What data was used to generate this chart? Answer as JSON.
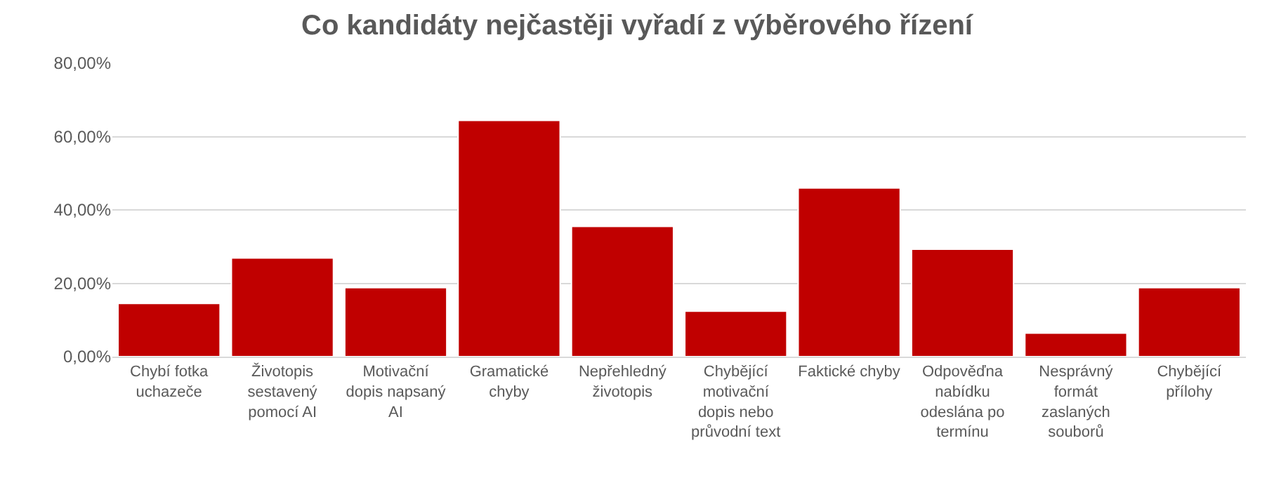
{
  "chart_data": {
    "type": "bar",
    "title": "Co kandidáty nejčastěji vyřadí z výběrového řízení",
    "categories": [
      "Chybí fotka uchazeče",
      "Životopis sestavený pomocí AI",
      "Motivační dopis napsaný AI",
      "Gramatické chyby",
      "Nepřehledný životopis",
      "Chybějící motivační dopis nebo průvodní text",
      "Faktické chyby",
      "Odpověďna nabídku odeslána po termínu",
      "Nesprávný formát zaslaných souborů",
      "Chybějící přílohy"
    ],
    "values": [
      14.5,
      26.9,
      18.8,
      64.4,
      35.5,
      12.4,
      46.0,
      29.3,
      6.4,
      18.8
    ],
    "color": "#c00000",
    "ylim": [
      0,
      80
    ],
    "yticks": [
      {
        "value": 0,
        "label": "0,00%"
      },
      {
        "value": 20,
        "label": "20,00%"
      },
      {
        "value": 40,
        "label": "40,00%"
      },
      {
        "value": 60,
        "label": "60,00%"
      },
      {
        "value": 80,
        "label": "80,00%"
      }
    ],
    "grid": "y",
    "legend": false
  }
}
